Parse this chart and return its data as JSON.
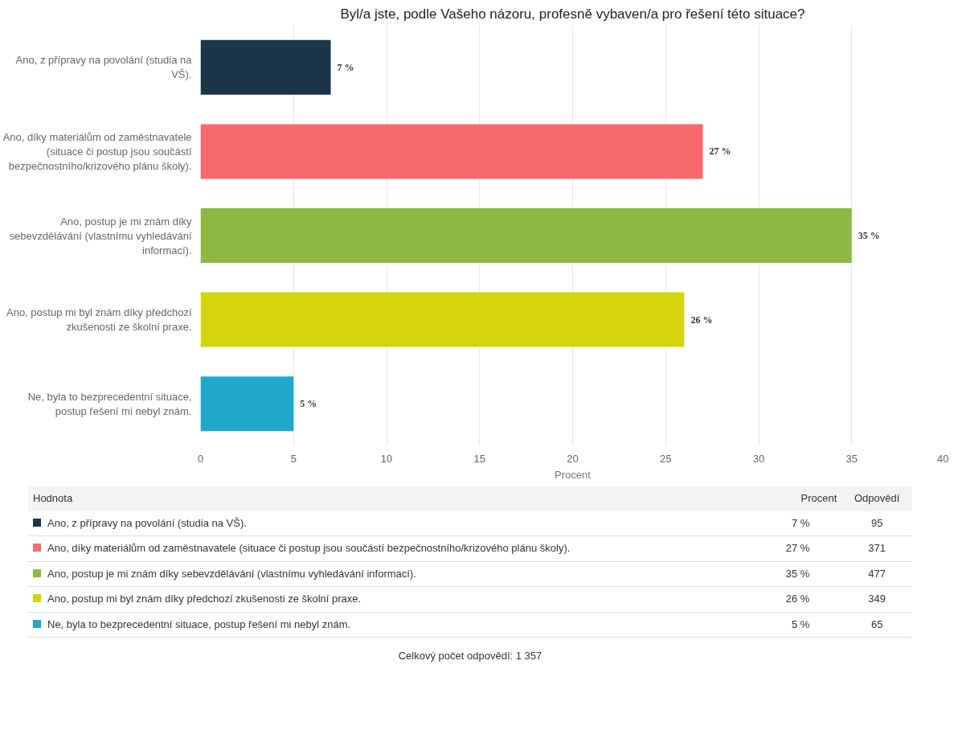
{
  "chart_data": {
    "type": "bar",
    "orientation": "horizontal",
    "title": "Byl/a jste, podle Vašeho názoru, profesně vybaven/a pro řešení této situace?",
    "xlabel": "Procent",
    "categories": [
      "Ano, z přípravy na povolání (studia na VŠ).",
      "Ano, díky materiálům od zaměstnavatele (situace či postup jsou součástí bezpečnostního/krizového plánu školy).",
      "Ano, postup je mi znám díky sebevzdělávání (vlastnímu vyhledávání informací).",
      "Ano, postup mi byl znám díky předchozí zkušenosti ze školní praxe.",
      "Ne, byla to bezprecedentní situace, postup řešení mi nebyl znám."
    ],
    "values": [
      7,
      27,
      35,
      26,
      5
    ],
    "value_labels": [
      "7 %",
      "27 %",
      "35 %",
      "26 %",
      "5 %"
    ],
    "colors": [
      "#1b3549",
      "#f7696b",
      "#8db842",
      "#d4d40c",
      "#1fa8c9"
    ],
    "xlim": [
      0,
      40
    ],
    "xticks": [
      0,
      5,
      10,
      15,
      20,
      25,
      30,
      35,
      40
    ],
    "grid": "x",
    "annotations": [
      "Hodnota",
      "Procent",
      "Odpovědí",
      "95",
      "371",
      "477",
      "349",
      "65",
      "Celkový počet odpovědí: 1 357"
    ]
  }
}
